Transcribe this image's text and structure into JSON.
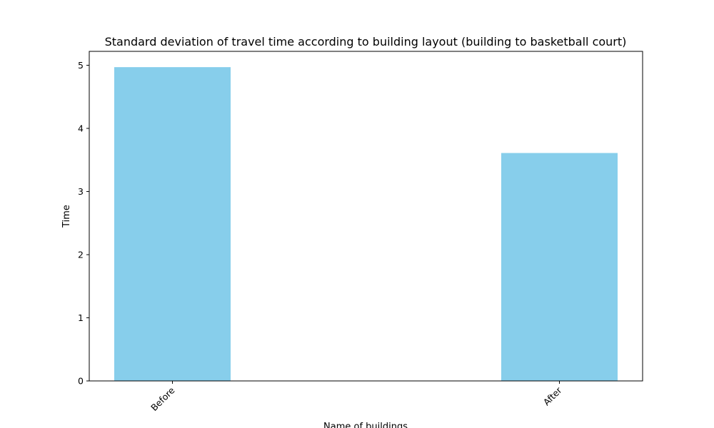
{
  "chart_data": {
    "type": "bar",
    "title": "Standard deviation of travel time according to building layout (building to basketball court)",
    "xlabel": "Name of buildings",
    "ylabel": "Time",
    "categories": [
      "Before",
      "After"
    ],
    "values": [
      4.97,
      3.61
    ],
    "ylim": [
      0,
      5.22
    ],
    "yticks": [
      0,
      1,
      2,
      3,
      4,
      5
    ],
    "grid": false,
    "legend": "none",
    "bar_color": "#87CEEB"
  }
}
